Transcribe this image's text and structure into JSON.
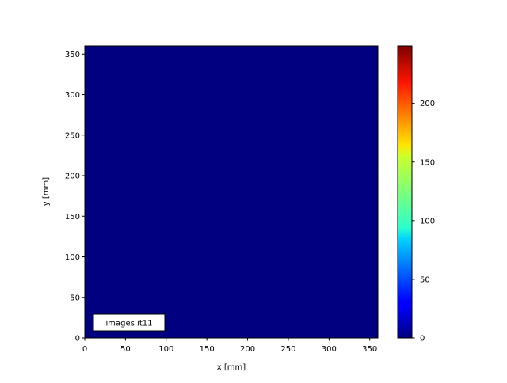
{
  "chart_data": {
    "type": "heatmap",
    "title": "",
    "xlabel": "x [mm]",
    "ylabel": "y [mm]",
    "xlim": [
      0,
      360
    ],
    "ylim": [
      0,
      360
    ],
    "xticks": [
      0,
      50,
      100,
      150,
      200,
      250,
      300,
      350
    ],
    "yticks": [
      0,
      50,
      100,
      150,
      200,
      250,
      300,
      350
    ],
    "values": [
      [
        0
      ]
    ],
    "value_description": "uniform field, all values 0",
    "colormap": "jet",
    "colorbar": {
      "range": [
        0,
        249
      ],
      "ticks": [
        0,
        50,
        100,
        150,
        200
      ]
    },
    "annotation": "images it11",
    "grid": false,
    "colors": {
      "field": "#000080"
    }
  }
}
